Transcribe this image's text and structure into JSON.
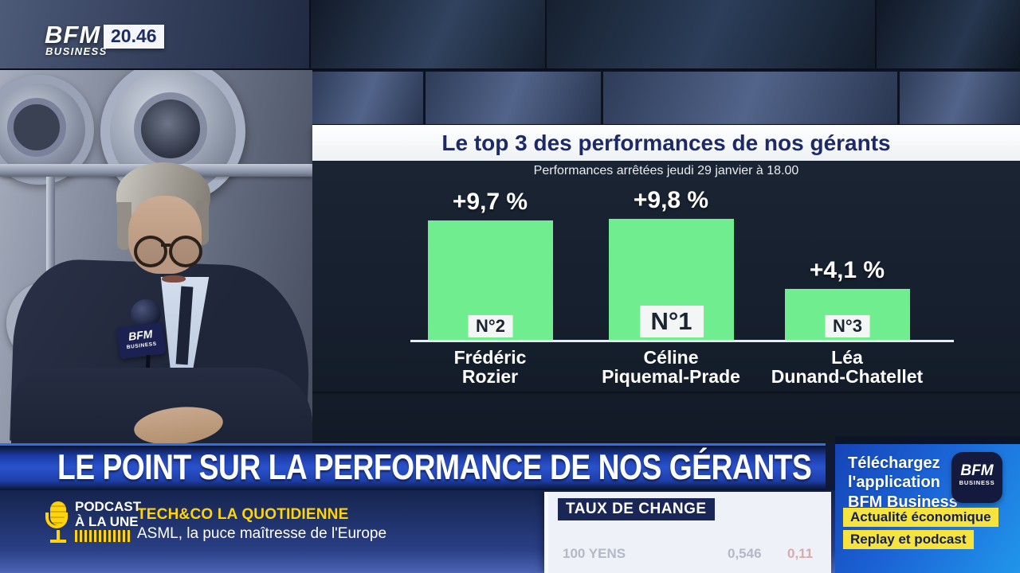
{
  "channel": {
    "name_top": "BFM",
    "name_bottom": "BUSINESS",
    "time": "20.46"
  },
  "presenter_mic_flag": {
    "top": "BFM",
    "bottom": "BUSINESS"
  },
  "chart": {
    "title": "Le top 3 des performances de nos gérants",
    "subtitle": "Performances arrêtées jeudi 29 janvier à 18.00",
    "bars": [
      {
        "value_label": "+9,7 %",
        "rank": "N°2",
        "name_line1": "Frédéric",
        "name_line2": "Rozier"
      },
      {
        "value_label": "+9,8 %",
        "rank": "N°1",
        "name_line1": "Céline",
        "name_line2": "Piquemal-Prade"
      },
      {
        "value_label": "+4,1 %",
        "rank": "N°3",
        "name_line1": "Léa",
        "name_line2": "Dunand-Chatellet"
      }
    ]
  },
  "chart_data": {
    "type": "bar",
    "title": "Le top 3 des performances de nos gérants",
    "subtitle": "Performances arrêtées jeudi 29 janvier à 18.00",
    "categories": [
      "Frédéric Rozier",
      "Céline Piquemal-Prade",
      "Léa Dunand-Chatellet"
    ],
    "values": [
      9.7,
      9.8,
      4.1
    ],
    "value_labels": [
      "+9,7 %",
      "+9,8 %",
      "+4,1 %"
    ],
    "ranks": [
      "N°2",
      "N°1",
      "N°3"
    ],
    "unit": "percent",
    "ylim": [
      0,
      10
    ],
    "grid": false,
    "legend": "none",
    "bar_color": "#70ee8f"
  },
  "lower_third": {
    "headline": "LE POINT SUR LA PERFORMANCE DE NOS GÉRANTS"
  },
  "podcast": {
    "kicker_line1": "PODCAST",
    "kicker_line2": "À LA UNE",
    "show": "TECH&CO LA QUOTIDIENNE",
    "episode": "ASML, la puce maîtresse de l'Europe"
  },
  "exchange_panel": {
    "title": "TAUX DE CHANGE",
    "row": {
      "label": "100 YENS",
      "value": "0,546",
      "change": "0,11"
    }
  },
  "app_promo": {
    "line1": "Téléchargez",
    "line2": "l'application",
    "line3": "BFM Business",
    "icon_top": "BFM",
    "icon_bottom": "BUSINESS",
    "badges": [
      "Actualité économique",
      "Replay et podcast"
    ]
  },
  "colors": {
    "bar_green": "#70ee8f",
    "banner_blue": "#2a52cc",
    "accent_yellow": "#f7e33d",
    "navy": "#141e3c"
  }
}
